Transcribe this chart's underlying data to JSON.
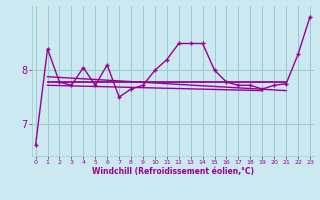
{
  "xlabel": "Windchill (Refroidissement éolien,°C)",
  "bg_color": "#cce8f0",
  "line_color": "#990099",
  "grid_color": "#99cccc",
  "x_values": [
    0,
    1,
    2,
    3,
    4,
    5,
    6,
    7,
    8,
    9,
    10,
    11,
    12,
    13,
    14,
    15,
    16,
    17,
    18,
    19,
    20,
    21,
    22,
    23
  ],
  "main_data": [
    6.6,
    8.4,
    7.78,
    7.72,
    8.05,
    7.72,
    8.1,
    7.5,
    7.65,
    7.72,
    8.0,
    8.2,
    8.5,
    8.5,
    8.5,
    8.0,
    7.78,
    7.72,
    7.72,
    7.65,
    7.72,
    7.75,
    8.3,
    9.0
  ],
  "flat_line_x": [
    1,
    21
  ],
  "flat_line_y": [
    7.78,
    7.78
  ],
  "trend1_x": [
    1,
    21
  ],
  "trend1_y": [
    7.88,
    7.62
  ],
  "trend2_x": [
    1,
    19
  ],
  "trend2_y": [
    7.72,
    7.62
  ],
  "ylim": [
    6.4,
    9.2
  ],
  "yticks": [
    7,
    8
  ],
  "xticks": [
    0,
    1,
    2,
    3,
    4,
    5,
    6,
    7,
    8,
    9,
    10,
    11,
    12,
    13,
    14,
    15,
    16,
    17,
    18,
    19,
    20,
    21,
    22,
    23
  ],
  "xlim": [
    -0.3,
    23.3
  ]
}
